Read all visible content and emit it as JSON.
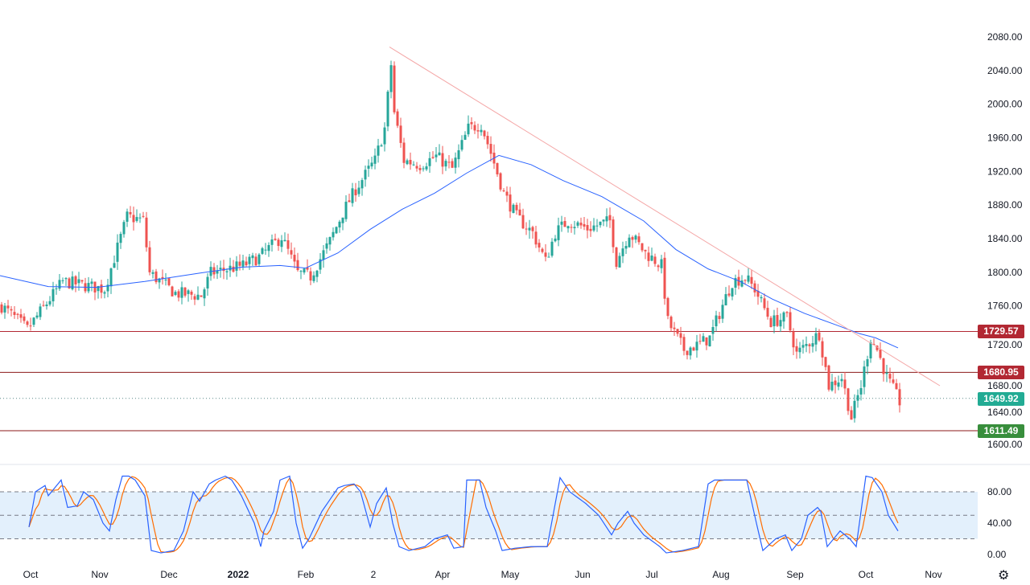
{
  "chart_data": {
    "type": "candlestick",
    "note": "approximate daily price path; day index from first visible candle",
    "price_axis": {
      "min": 1600,
      "max": 2080,
      "step": 40,
      "ticks": [
        "1600.00",
        "1640.00",
        "1680.00",
        "1720.00",
        "1760.00",
        "1800.00",
        "1840.00",
        "1880.00",
        "1920.00",
        "1960.00",
        "2000.00",
        "2040.00",
        "2080.00"
      ]
    },
    "time_axis": [
      {
        "label": "Oct",
        "day": 9.5
      },
      {
        "label": "Nov",
        "day": 31
      },
      {
        "label": "Dec",
        "day": 52.5
      },
      {
        "label": "2022",
        "day": 74,
        "bold": true
      },
      {
        "label": "Feb",
        "day": 95
      },
      {
        "label": "2",
        "day": 116
      },
      {
        "label": "Apr",
        "day": 137.5
      },
      {
        "label": "May",
        "day": 158.5
      },
      {
        "label": "Jun",
        "day": 181
      },
      {
        "label": "Jul",
        "day": 202.5
      },
      {
        "label": "Aug",
        "day": 224
      },
      {
        "label": "Sep",
        "day": 247
      },
      {
        "label": "Oct",
        "day": 269
      },
      {
        "label": "Nov",
        "day": 290
      }
    ],
    "close_path": [
      [
        0,
        1760
      ],
      [
        8,
        1732
      ],
      [
        19,
        1789
      ],
      [
        32,
        1780
      ],
      [
        39,
        1866
      ],
      [
        44,
        1862
      ],
      [
        46,
        1799
      ],
      [
        54,
        1775
      ],
      [
        62,
        1772
      ],
      [
        65,
        1799
      ],
      [
        75,
        1808
      ],
      [
        80,
        1818
      ],
      [
        87,
        1842
      ],
      [
        92,
        1799
      ],
      [
        96,
        1795
      ],
      [
        102,
        1837
      ],
      [
        106,
        1871
      ],
      [
        110,
        1899
      ],
      [
        116,
        1933
      ],
      [
        119,
        1971
      ],
      [
        121,
        2047
      ],
      [
        122,
        1990
      ],
      [
        125,
        1933
      ],
      [
        130,
        1928
      ],
      [
        135,
        1938
      ],
      [
        140,
        1923
      ],
      [
        145,
        1971
      ],
      [
        149,
        1976
      ],
      [
        152,
        1942
      ],
      [
        156,
        1894
      ],
      [
        160,
        1866
      ],
      [
        165,
        1847
      ],
      [
        169,
        1813
      ],
      [
        172,
        1847
      ],
      [
        176,
        1861
      ],
      [
        182,
        1852
      ],
      [
        189,
        1861
      ],
      [
        191,
        1813
      ],
      [
        195,
        1847
      ],
      [
        200,
        1823
      ],
      [
        205,
        1808
      ],
      [
        207,
        1741
      ],
      [
        212,
        1708
      ],
      [
        216,
        1713
      ],
      [
        220,
        1722
      ],
      [
        224,
        1761
      ],
      [
        227,
        1789
      ],
      [
        231,
        1794
      ],
      [
        234,
        1780
      ],
      [
        239,
        1741
      ],
      [
        244,
        1746
      ],
      [
        247,
        1703
      ],
      [
        254,
        1727
      ],
      [
        257,
        1665
      ],
      [
        261,
        1675
      ],
      [
        264,
        1627
      ],
      [
        267,
        1665
      ],
      [
        270,
        1722
      ],
      [
        272,
        1708
      ],
      [
        275,
        1675
      ],
      [
        279,
        1646
      ]
    ],
    "ma_path": [
      [
        0,
        1796
      ],
      [
        15,
        1783
      ],
      [
        30,
        1782
      ],
      [
        45,
        1789
      ],
      [
        62,
        1799
      ],
      [
        75,
        1806
      ],
      [
        87,
        1808
      ],
      [
        95,
        1805
      ],
      [
        105,
        1823
      ],
      [
        115,
        1851
      ],
      [
        125,
        1875
      ],
      [
        135,
        1894
      ],
      [
        145,
        1918
      ],
      [
        155,
        1939
      ],
      [
        165,
        1928
      ],
      [
        175,
        1909
      ],
      [
        187,
        1890
      ],
      [
        200,
        1861
      ],
      [
        210,
        1827
      ],
      [
        220,
        1804
      ],
      [
        230,
        1789
      ],
      [
        240,
        1768
      ],
      [
        250,
        1751
      ],
      [
        260,
        1737
      ],
      [
        267,
        1727
      ],
      [
        272,
        1722
      ],
      [
        279,
        1710
      ]
    ],
    "trendline": [
      [
        121,
        2068
      ],
      [
        292,
        1665
      ]
    ],
    "levels": [
      {
        "value": 1729.57,
        "label": "1729.57",
        "color": "#b22833",
        "label_color": "#b22833"
      },
      {
        "value": 1680.95,
        "label": "1680.95",
        "color": "#8b1a1a",
        "label_color": "#b22833"
      },
      {
        "value": 1649.92,
        "label": "1649.92",
        "color": "#5a8a8a",
        "label_color": "#22ab94",
        "dotted": true
      },
      {
        "value": 1611.49,
        "label": "1611.49",
        "color": "#8b1a1a",
        "label_color": "#388e3c"
      }
    ],
    "stoch": {
      "ticks": [
        "0.00",
        "40.00",
        "80.00"
      ],
      "upper": 80,
      "middle": 50,
      "lower": 20,
      "k_path": [
        [
          9,
          35
        ],
        [
          11,
          80
        ],
        [
          14,
          88
        ],
        [
          15,
          75
        ],
        [
          19,
          95
        ],
        [
          21,
          60
        ],
        [
          24,
          62
        ],
        [
          26,
          80
        ],
        [
          29,
          70
        ],
        [
          32,
          40
        ],
        [
          34,
          30
        ],
        [
          36,
          70
        ],
        [
          38,
          100
        ],
        [
          40,
          100
        ],
        [
          42,
          95
        ],
        [
          45,
          75
        ],
        [
          47,
          5
        ],
        [
          50,
          2
        ],
        [
          54,
          5
        ],
        [
          57,
          30
        ],
        [
          60,
          80
        ],
        [
          62,
          68
        ],
        [
          65,
          90
        ],
        [
          67,
          95
        ],
        [
          70,
          100
        ],
        [
          72,
          95
        ],
        [
          75,
          75
        ],
        [
          79,
          40
        ],
        [
          81,
          10
        ],
        [
          82,
          30
        ],
        [
          85,
          55
        ],
        [
          87,
          95
        ],
        [
          90,
          100
        ],
        [
          92,
          40
        ],
        [
          94,
          8
        ],
        [
          96,
          20
        ],
        [
          100,
          55
        ],
        [
          105,
          85
        ],
        [
          107,
          88
        ],
        [
          110,
          90
        ],
        [
          112,
          80
        ],
        [
          115,
          35
        ],
        [
          117,
          65
        ],
        [
          120,
          85
        ],
        [
          122,
          40
        ],
        [
          124,
          10
        ],
        [
          127,
          5
        ],
        [
          132,
          10
        ],
        [
          135,
          20
        ],
        [
          139,
          25
        ],
        [
          141,
          8
        ],
        [
          144,
          10
        ],
        [
          145,
          95
        ],
        [
          149,
          95
        ],
        [
          151,
          60
        ],
        [
          154,
          30
        ],
        [
          156,
          5
        ],
        [
          160,
          8
        ],
        [
          165,
          10
        ],
        [
          170,
          10
        ],
        [
          174,
          98
        ],
        [
          177,
          80
        ],
        [
          182,
          65
        ],
        [
          186,
          50
        ],
        [
          190,
          25
        ],
        [
          192,
          40
        ],
        [
          195,
          55
        ],
        [
          197,
          40
        ],
        [
          200,
          25
        ],
        [
          205,
          10
        ],
        [
          207,
          2
        ],
        [
          212,
          5
        ],
        [
          217,
          10
        ],
        [
          220,
          90
        ],
        [
          222,
          95
        ],
        [
          227,
          95
        ],
        [
          232,
          95
        ],
        [
          235,
          40
        ],
        [
          237,
          5
        ],
        [
          241,
          20
        ],
        [
          244,
          25
        ],
        [
          246,
          5
        ],
        [
          249,
          20
        ],
        [
          251,
          50
        ],
        [
          254,
          60
        ],
        [
          255,
          55
        ],
        [
          257,
          10
        ],
        [
          261,
          30
        ],
        [
          264,
          20
        ],
        [
          266,
          10
        ],
        [
          269,
          100
        ],
        [
          271,
          98
        ],
        [
          274,
          80
        ],
        [
          276,
          50
        ],
        [
          279,
          30
        ]
      ]
    }
  },
  "colors": {
    "up": "#26a69a",
    "down": "#ef5350",
    "ma": "#2962ff",
    "trend": "#f4a6a6",
    "k": "#2962ff",
    "d": "#ff6d00",
    "band": "#e3f0fc"
  },
  "settings_icon": "gear-icon"
}
